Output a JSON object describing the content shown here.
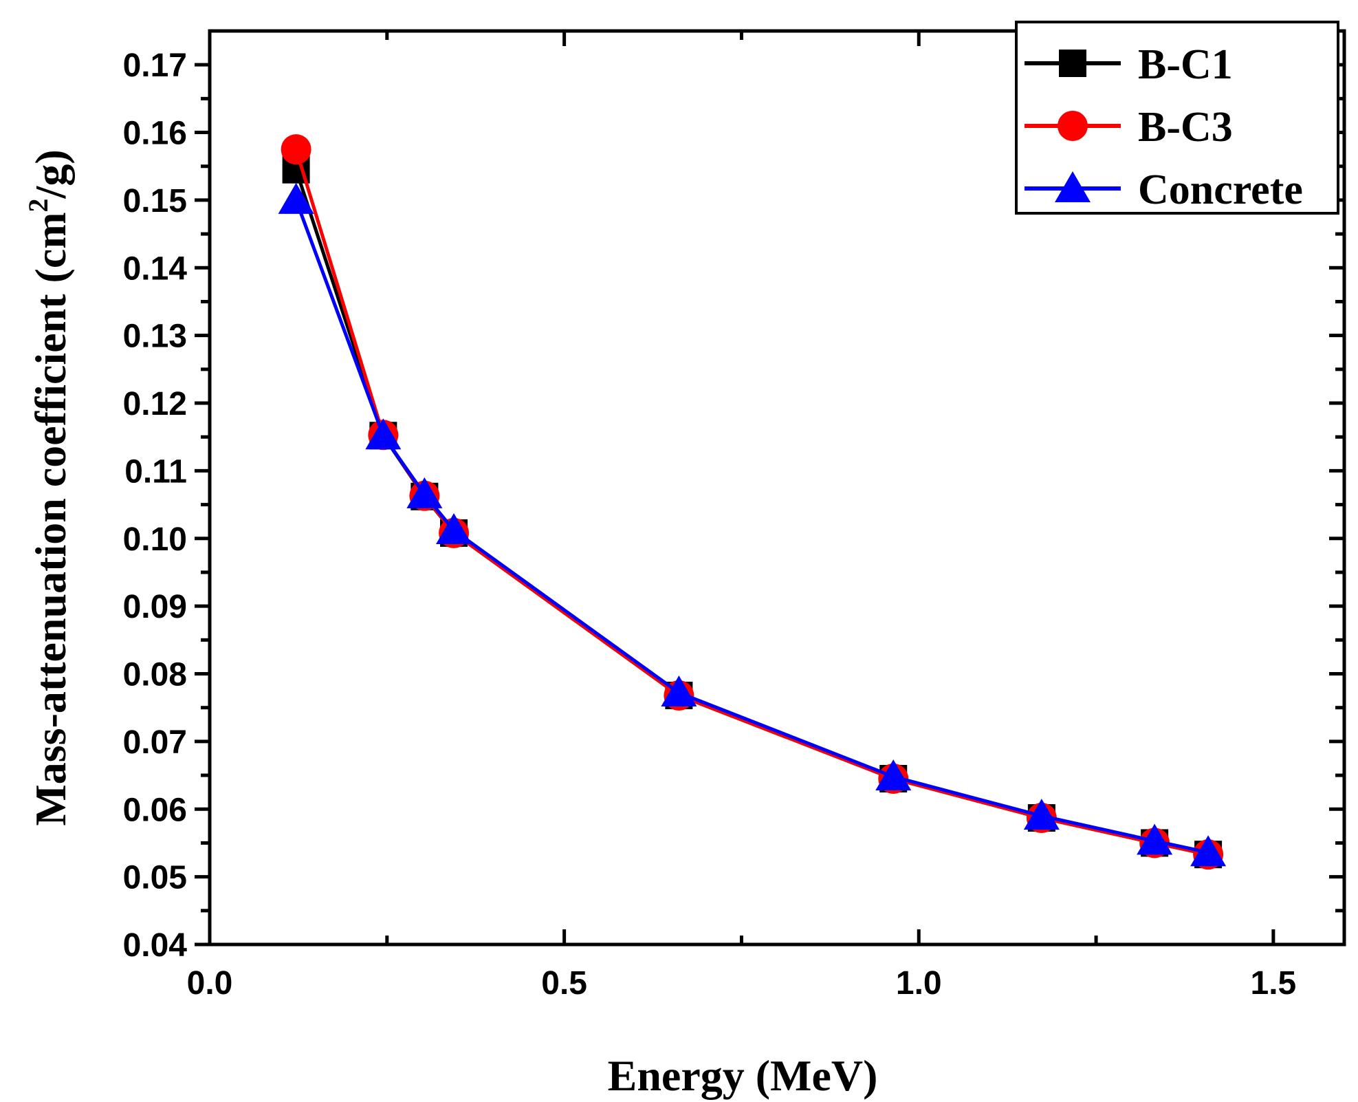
{
  "chart_data": {
    "type": "line",
    "title": "",
    "xlabel": "Energy (MeV)",
    "ylabel": "Mass-attenuation coefficient (cm",
    "ylabel_sup": "2",
    "ylabel_tail": "/g)",
    "xlim": [
      0.0,
      1.6
    ],
    "ylim": [
      0.04,
      0.175
    ],
    "x_ticks": [
      0.0,
      0.5,
      1.0,
      1.5
    ],
    "x_tick_labels": [
      "0.0",
      "0.5",
      "1.0",
      "1.5"
    ],
    "x_minor_ticks": [
      0.25,
      0.75,
      1.25
    ],
    "y_ticks": [
      0.04,
      0.05,
      0.06,
      0.07,
      0.08,
      0.09,
      0.1,
      0.11,
      0.12,
      0.13,
      0.14,
      0.15,
      0.16,
      0.17
    ],
    "y_tick_labels": [
      "0.04",
      "0.05",
      "0.06",
      "0.07",
      "0.08",
      "0.09",
      "0.10",
      "0.11",
      "0.12",
      "0.13",
      "0.14",
      "0.15",
      "0.16",
      "0.17"
    ],
    "y_minor_ticks": [
      0.045,
      0.055,
      0.065,
      0.075,
      0.085,
      0.095,
      0.105,
      0.115,
      0.125,
      0.135,
      0.145,
      0.155,
      0.165
    ],
    "grid": false,
    "legend_position": "top-right",
    "x": [
      0.1218,
      0.2447,
      0.3029,
      0.3443,
      0.6617,
      0.9641,
      1.1732,
      1.3325,
      1.4081
    ],
    "series": [
      {
        "name": "B-C1",
        "color": "#000000",
        "marker": "square",
        "values": [
          0.1545,
          0.1152,
          0.1062,
          0.1008,
          0.0768,
          0.0645,
          0.0587,
          0.055,
          0.0533
        ]
      },
      {
        "name": "B-C3",
        "color": "#ff0000",
        "marker": "circle",
        "values": [
          0.1575,
          0.1153,
          0.1063,
          0.1008,
          0.0768,
          0.0645,
          0.0587,
          0.055,
          0.0533
        ]
      },
      {
        "name": "Concrete",
        "color": "#0000ff",
        "marker": "triangle",
        "values": [
          0.15,
          0.1152,
          0.1065,
          0.1012,
          0.0772,
          0.0648,
          0.059,
          0.0553,
          0.0536
        ]
      }
    ]
  }
}
